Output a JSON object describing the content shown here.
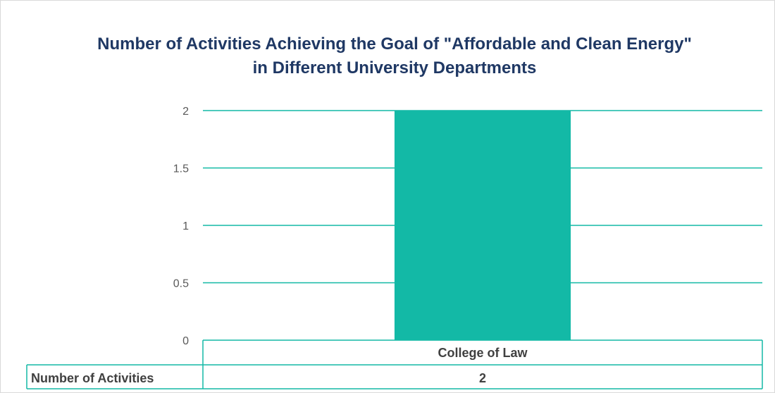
{
  "chart_data": {
    "type": "bar",
    "title_line1": "Number of Activities Achieving the Goal of \"Affordable and Clean Energy\"",
    "title_line2": "in Different University Departments",
    "categories": [
      "College of Law"
    ],
    "series": [
      {
        "name": "Number of Activities",
        "values": [
          2
        ]
      }
    ],
    "yticks": [
      "0",
      "0.5",
      "1",
      "1.5",
      "2"
    ],
    "ylim": [
      0,
      2
    ],
    "grid": true,
    "data_table": true,
    "bar_color": "#13b9a6",
    "grid_color": "#13b9a6",
    "title_color": "#1f3864"
  }
}
